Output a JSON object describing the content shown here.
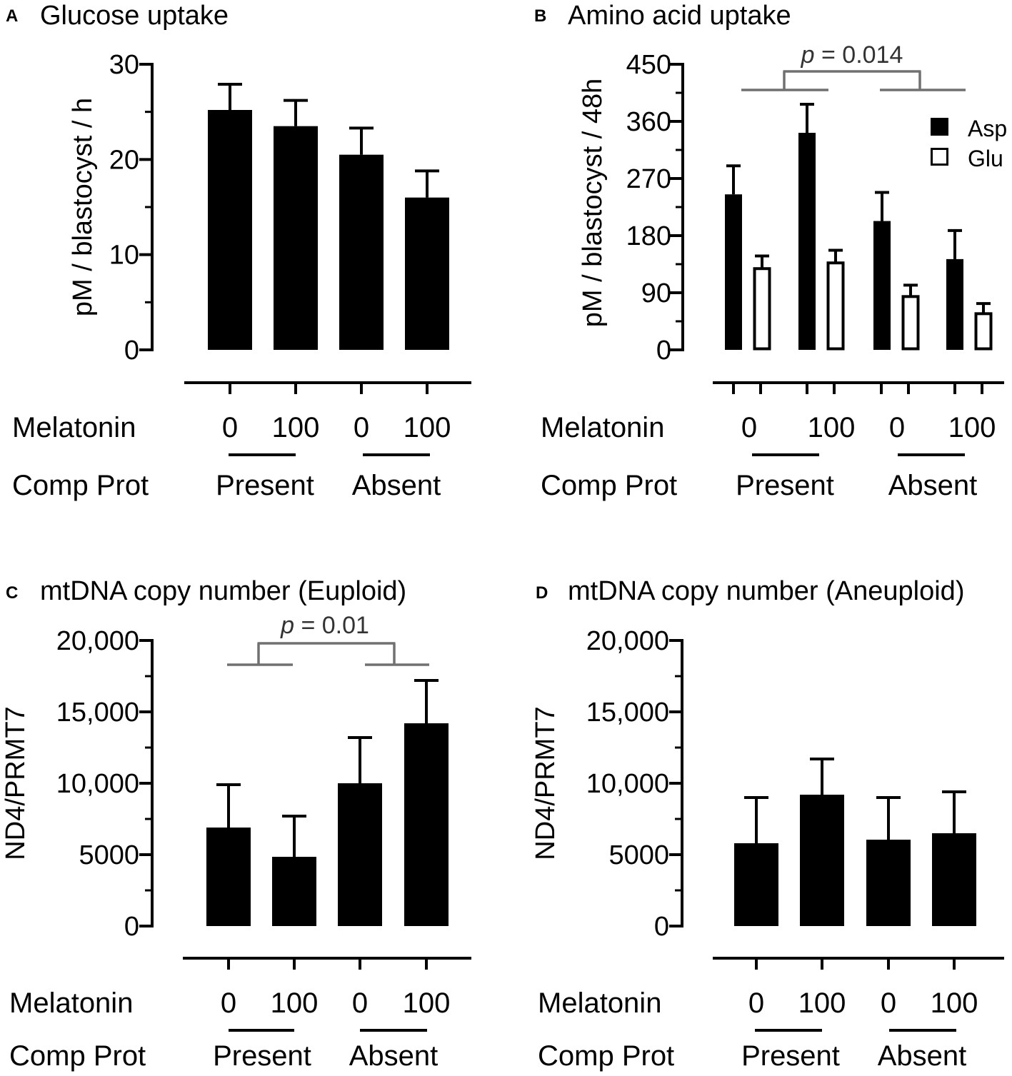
{
  "colors": {
    "bar_fill": "#000000",
    "open_fill": "#ffffff",
    "sig_bracket": "#707070"
  },
  "row_labels": {
    "melatonin": "Melatonin",
    "comp_prot": "Comp Prot"
  },
  "chart_data": [
    {
      "panel": "A",
      "title": "Glucose uptake",
      "type": "bar",
      "ylabel": "pM / blastocyst / h",
      "ylim": [
        0,
        30
      ],
      "yticks": [
        "0",
        "10",
        "20",
        "30"
      ],
      "categories": [
        "0",
        "100",
        "0",
        "100"
      ],
      "groups": [
        "Present",
        "Absent"
      ],
      "series": [
        {
          "name": "Glucose",
          "style": "filled",
          "values": [
            25.2,
            23.5,
            20.5,
            16.0
          ],
          "errors": [
            2.7,
            2.7,
            2.8,
            2.8
          ]
        }
      ],
      "legend": [],
      "significance": null
    },
    {
      "panel": "B",
      "title": "Amino acid uptake",
      "type": "bar",
      "ylabel": "pM / blastocyst / 48h",
      "ylim": [
        0,
        450
      ],
      "yticks": [
        "0",
        "90",
        "180",
        "270",
        "360",
        "450"
      ],
      "categories": [
        "0",
        "100",
        "0",
        "100"
      ],
      "groups": [
        "Present",
        "Absent"
      ],
      "series": [
        {
          "name": "Asp",
          "style": "filled",
          "values": [
            245,
            342,
            203,
            143
          ],
          "errors": [
            45,
            45,
            45,
            45
          ]
        },
        {
          "name": "Glu",
          "style": "open",
          "values": [
            128,
            137,
            84,
            57
          ],
          "errors": [
            20,
            20,
            18,
            16
          ]
        }
      ],
      "legend": [
        "Asp",
        "Glu"
      ],
      "significance": {
        "text": "= 0.014",
        "p_symbol": "p",
        "from_group": "Present",
        "to_group": "Absent"
      }
    },
    {
      "panel": "C",
      "title": "mtDNA copy number (Euploid)",
      "type": "bar",
      "ylabel": "ND4/PRMT7",
      "ylim": [
        0,
        20000
      ],
      "yticks": [
        "0",
        "5000",
        "10,000",
        "15,000",
        "20,000"
      ],
      "categories": [
        "0",
        "100",
        "0",
        "100"
      ],
      "groups": [
        "Present",
        "Absent"
      ],
      "series": [
        {
          "name": "Euploid",
          "style": "filled",
          "values": [
            6900,
            4850,
            10000,
            14200
          ],
          "errors": [
            3000,
            2850,
            3200,
            3000
          ]
        }
      ],
      "legend": [],
      "significance": {
        "text": "= 0.01",
        "p_symbol": "p",
        "from_group": "Present",
        "to_group": "Absent"
      }
    },
    {
      "panel": "D",
      "title": "mtDNA copy number (Aneuploid)",
      "type": "bar",
      "ylabel": "ND4/PRMT7",
      "ylim": [
        0,
        20000
      ],
      "yticks": [
        "0",
        "5000",
        "10,000",
        "15,000",
        "20,000"
      ],
      "categories": [
        "0",
        "100",
        "0",
        "100"
      ],
      "groups": [
        "Present",
        "Absent"
      ],
      "series": [
        {
          "name": "Aneuploid",
          "style": "filled",
          "values": [
            5800,
            9200,
            6050,
            6500
          ],
          "errors": [
            3200,
            2500,
            2950,
            2900
          ]
        }
      ],
      "legend": [],
      "significance": null
    }
  ]
}
